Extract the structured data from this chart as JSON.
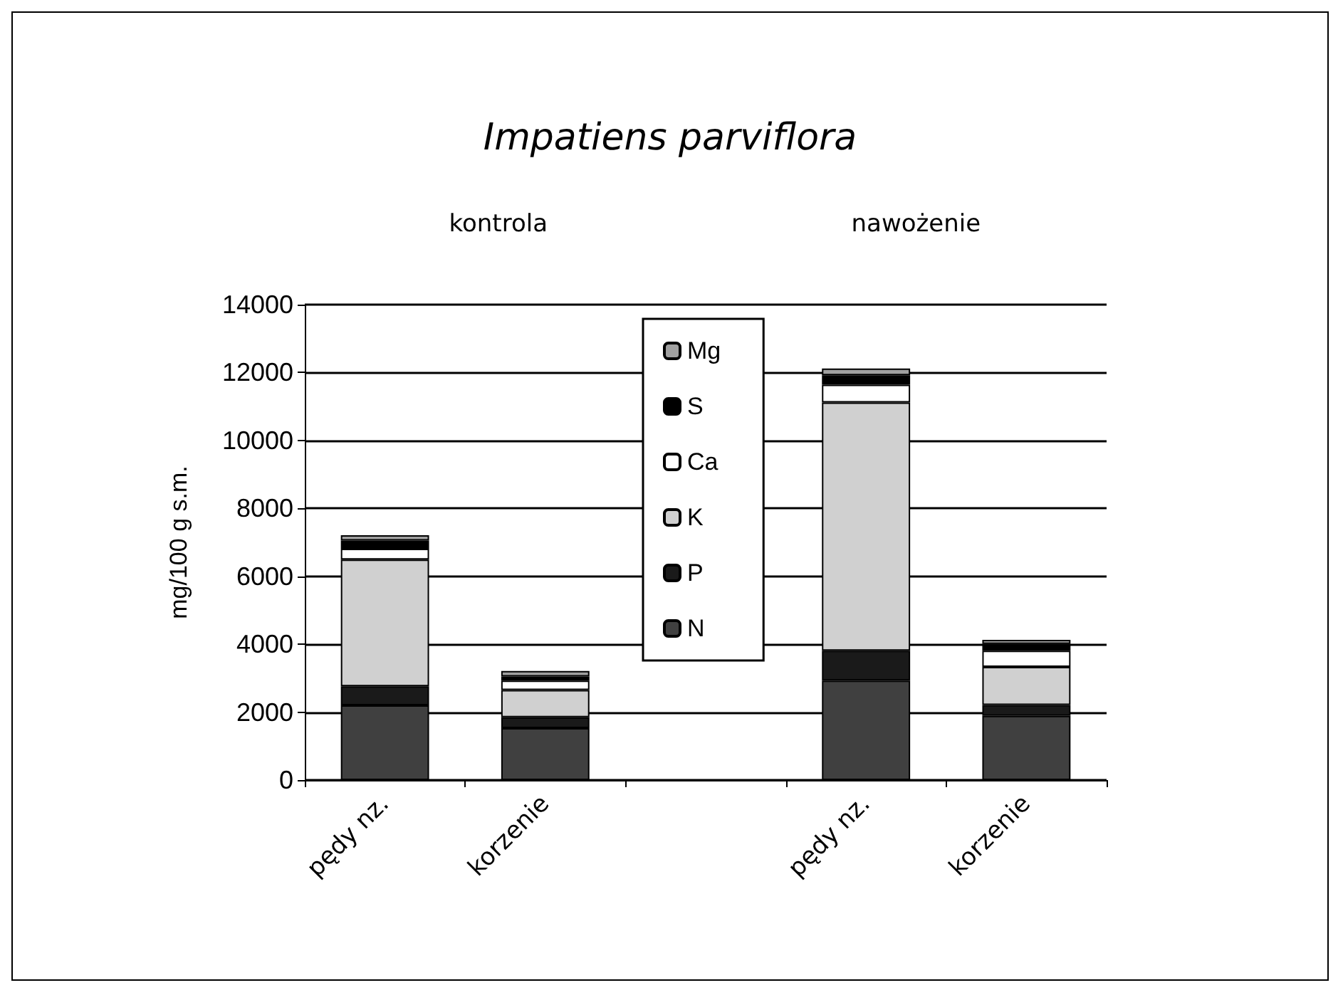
{
  "chart_data": {
    "type": "bar",
    "stacked": true,
    "title": "Impatiens parviflora",
    "ylabel": "mg/100 g s.m.",
    "annotations": [
      "kontrola",
      "nawożenie"
    ],
    "categories": [
      "pędy nz.",
      "korzenie",
      null,
      "pędy nz.",
      "korzenie"
    ],
    "series": [
      {
        "name": "N",
        "color": "#404040",
        "values": [
          2200,
          1530,
          null,
          2930,
          1890
        ]
      },
      {
        "name": "P",
        "color": "#1a1a1a",
        "values": [
          560,
          320,
          null,
          880,
          320
        ]
      },
      {
        "name": "K",
        "color": "#d0d0d0",
        "values": [
          3730,
          800,
          null,
          7310,
          1120
        ]
      },
      {
        "name": "Ca",
        "color": "#ffffff",
        "values": [
          320,
          280,
          null,
          520,
          480
        ]
      },
      {
        "name": "S",
        "color": "#000000",
        "values": [
          240,
          120,
          null,
          280,
          200
        ]
      },
      {
        "name": "Mg",
        "color": "#a0a0a0",
        "values": [
          160,
          160,
          null,
          200,
          120
        ]
      }
    ],
    "ylim": [
      0,
      14000
    ],
    "yticks": [
      0,
      2000,
      4000,
      6000,
      8000,
      10000,
      12000,
      14000
    ],
    "grid": "y",
    "legend": "top"
  }
}
